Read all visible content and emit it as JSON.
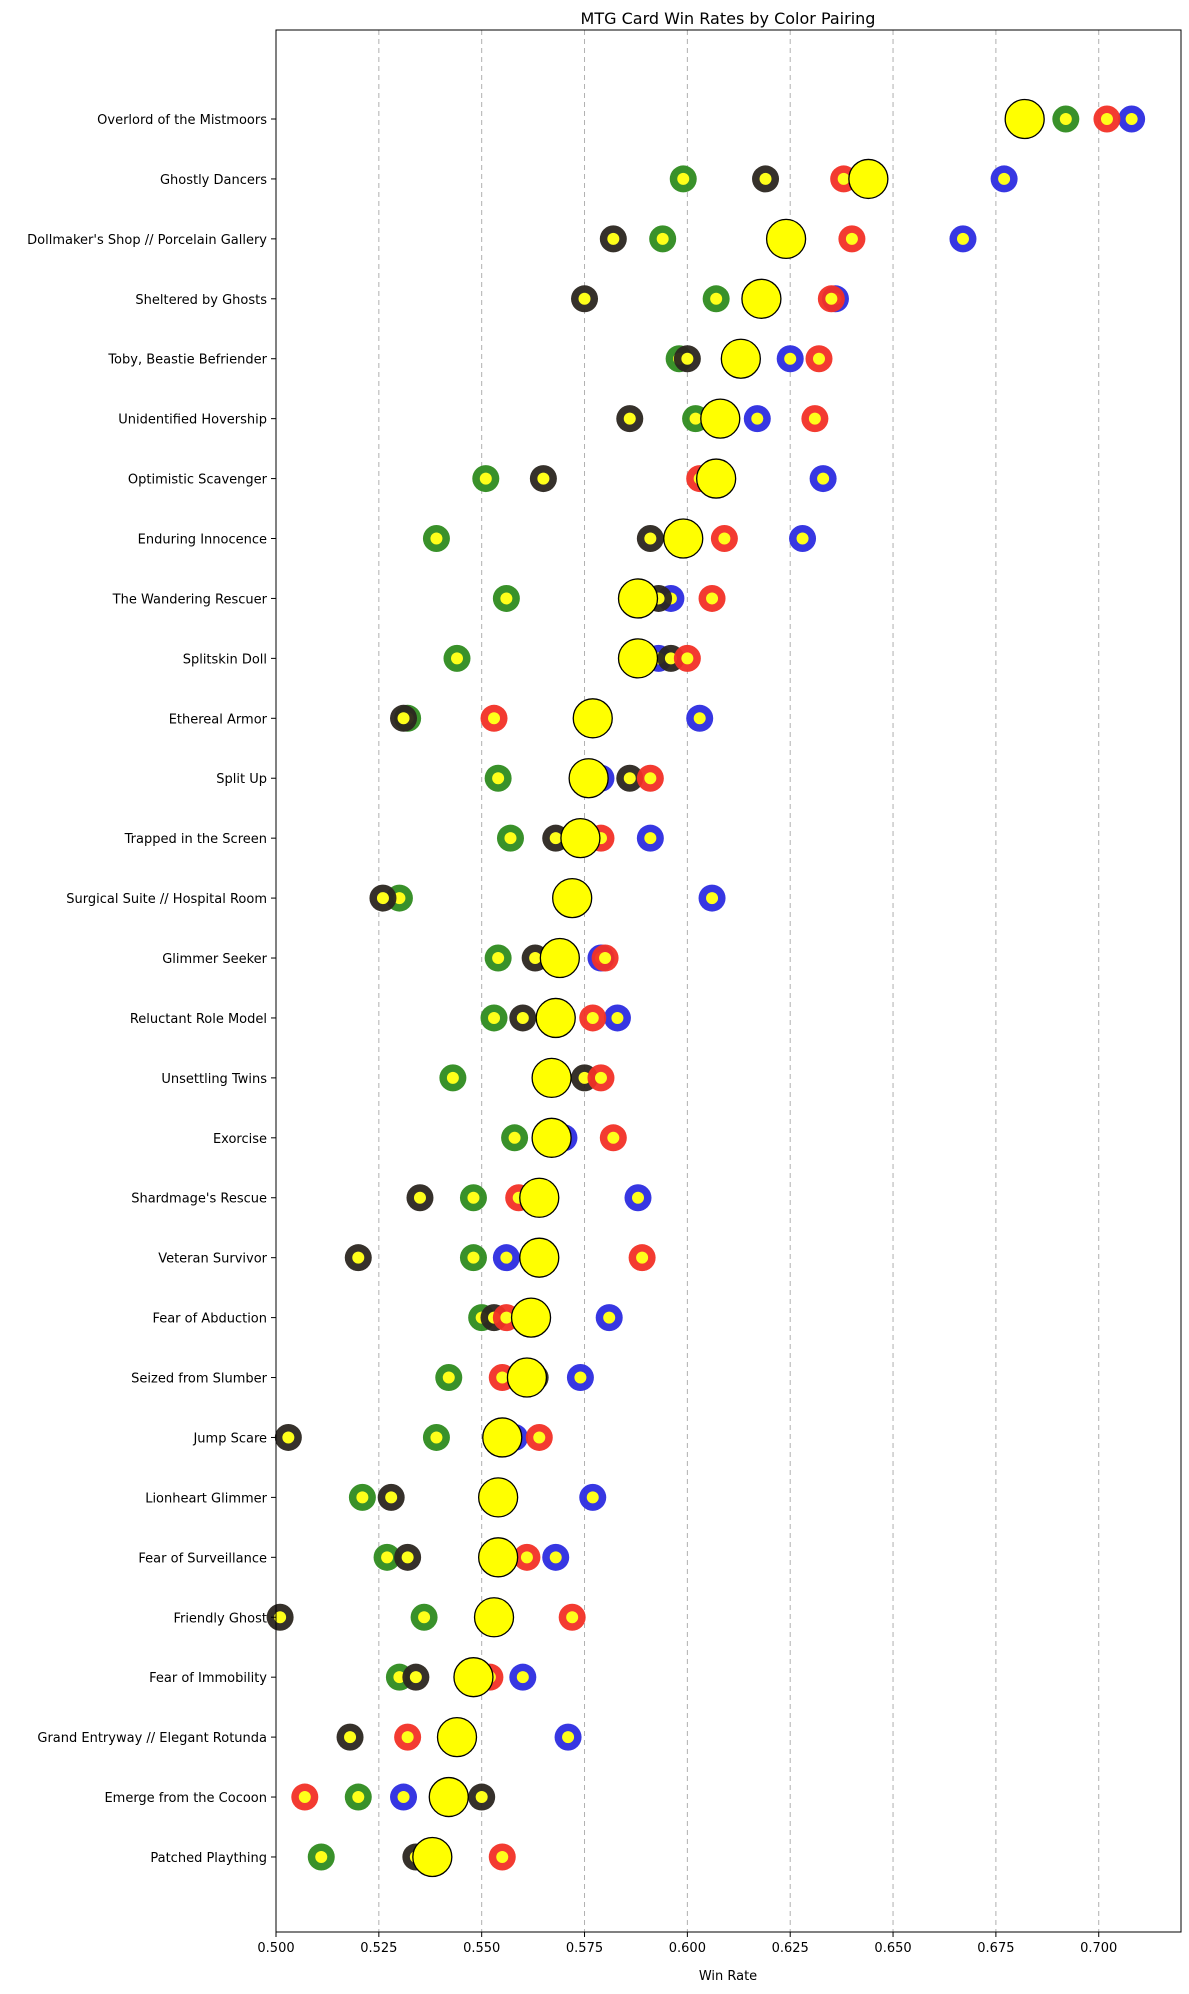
{
  "chart_data": {
    "type": "scatter",
    "title": "MTG Card Win Rates by Color Pairing",
    "xlabel": "Win Rate",
    "ylabel": "",
    "xlim": [
      0.5,
      0.72
    ],
    "xticks": [
      "0.500",
      "0.525",
      "0.550",
      "0.575",
      "0.600",
      "0.625",
      "0.650",
      "0.675",
      "0.700"
    ],
    "xtick_values": [
      0.5,
      0.525,
      0.55,
      0.575,
      0.6,
      0.625,
      0.65,
      0.675,
      0.7
    ],
    "grid": "vertical dashed",
    "legend": "none",
    "colors": {
      "W": "#2e8b1f",
      "U": "#2c2ce0",
      "B": "#2b2620",
      "R": "#f23026",
      "inner": "#ffff1a",
      "overall": "#ffff00"
    },
    "cards": [
      {
        "name": "Overlord of the Mistmoors",
        "overall": 0.682,
        "W": 0.692,
        "U": 0.708,
        "B": 0.681,
        "R": 0.702
      },
      {
        "name": "Ghostly Dancers",
        "overall": 0.644,
        "W": 0.599,
        "U": 0.677,
        "B": 0.619,
        "R": 0.638
      },
      {
        "name": "Dollmaker's Shop // Porcelain Gallery",
        "overall": 0.624,
        "W": 0.594,
        "U": 0.667,
        "B": 0.582,
        "R": 0.64
      },
      {
        "name": "Sheltered by Ghosts",
        "overall": 0.618,
        "W": 0.607,
        "U": 0.636,
        "B": 0.575,
        "R": 0.635
      },
      {
        "name": "Toby, Beastie Befriender",
        "overall": 0.613,
        "W": 0.598,
        "U": 0.625,
        "B": 0.6,
        "R": 0.632
      },
      {
        "name": "Unidentified Hovership",
        "overall": 0.608,
        "W": 0.602,
        "U": 0.617,
        "B": 0.586,
        "R": 0.631
      },
      {
        "name": "Optimistic Scavenger",
        "overall": 0.607,
        "W": 0.551,
        "U": 0.633,
        "B": 0.565,
        "R": 0.603
      },
      {
        "name": "Enduring Innocence",
        "overall": 0.599,
        "W": 0.539,
        "U": 0.628,
        "B": 0.591,
        "R": 0.609
      },
      {
        "name": "The Wandering Rescuer",
        "overall": 0.588,
        "W": 0.556,
        "U": 0.596,
        "B": 0.593,
        "R": 0.606
      },
      {
        "name": "Splitskin Doll",
        "overall": 0.588,
        "W": 0.544,
        "U": 0.593,
        "B": 0.596,
        "R": 0.6
      },
      {
        "name": "Ethereal Armor",
        "overall": 0.577,
        "W": 0.532,
        "U": 0.603,
        "B": 0.531,
        "R": 0.553
      },
      {
        "name": "Split Up",
        "overall": 0.576,
        "W": 0.554,
        "U": 0.579,
        "B": 0.586,
        "R": 0.591
      },
      {
        "name": "Trapped in the Screen",
        "overall": 0.574,
        "W": 0.557,
        "U": 0.591,
        "B": 0.568,
        "R": 0.579
      },
      {
        "name": "Surgical Suite // Hospital Room",
        "overall": 0.572,
        "W": 0.53,
        "U": 0.606,
        "B": 0.526,
        "R": 0.572
      },
      {
        "name": "Glimmer Seeker",
        "overall": 0.569,
        "W": 0.554,
        "U": 0.579,
        "B": 0.563,
        "R": 0.58
      },
      {
        "name": "Reluctant Role Model",
        "overall": 0.568,
        "W": 0.553,
        "U": 0.583,
        "B": 0.56,
        "R": 0.577
      },
      {
        "name": "Unsettling Twins",
        "overall": 0.567,
        "W": 0.543,
        "U": 0.567,
        "B": 0.575,
        "R": 0.579
      },
      {
        "name": "Exorcise",
        "overall": 0.567,
        "W": 0.558,
        "U": 0.57,
        "B": 0.567,
        "R": 0.582
      },
      {
        "name": "Shardmage's Rescue",
        "overall": 0.564,
        "W": 0.548,
        "U": 0.588,
        "B": 0.535,
        "R": 0.559
      },
      {
        "name": "Veteran Survivor",
        "overall": 0.564,
        "W": 0.548,
        "U": 0.556,
        "B": 0.52,
        "R": 0.589
      },
      {
        "name": "Fear of Abduction",
        "overall": 0.562,
        "W": 0.55,
        "U": 0.581,
        "B": 0.553,
        "R": 0.556
      },
      {
        "name": "Seized from Slumber",
        "overall": 0.561,
        "W": 0.542,
        "U": 0.574,
        "B": 0.563,
        "R": 0.555
      },
      {
        "name": "Jump Scare",
        "overall": 0.555,
        "W": 0.539,
        "U": 0.558,
        "B": 0.503,
        "R": 0.564
      },
      {
        "name": "Lionheart Glimmer",
        "overall": 0.554,
        "W": 0.521,
        "U": 0.577,
        "B": 0.528,
        "R": 0.554
      },
      {
        "name": "Fear of Surveillance",
        "overall": 0.554,
        "W": 0.527,
        "U": 0.568,
        "B": 0.532,
        "R": 0.561
      },
      {
        "name": "Friendly Ghost",
        "overall": 0.553,
        "W": 0.536,
        "U": 0.553,
        "B": 0.501,
        "R": 0.572
      },
      {
        "name": "Fear of Immobility",
        "overall": 0.548,
        "W": 0.53,
        "U": 0.56,
        "B": 0.534,
        "R": 0.552
      },
      {
        "name": "Grand Entryway // Elegant Rotunda",
        "overall": 0.544,
        "W": 0.544,
        "U": 0.571,
        "B": 0.518,
        "R": 0.532
      },
      {
        "name": "Emerge from the Cocoon",
        "overall": 0.542,
        "W": 0.52,
        "U": 0.531,
        "B": 0.55,
        "R": 0.507
      },
      {
        "name": "Patched Plaything",
        "overall": 0.538,
        "W": 0.511,
        "U": 0.538,
        "B": 0.534,
        "R": 0.555
      }
    ]
  }
}
